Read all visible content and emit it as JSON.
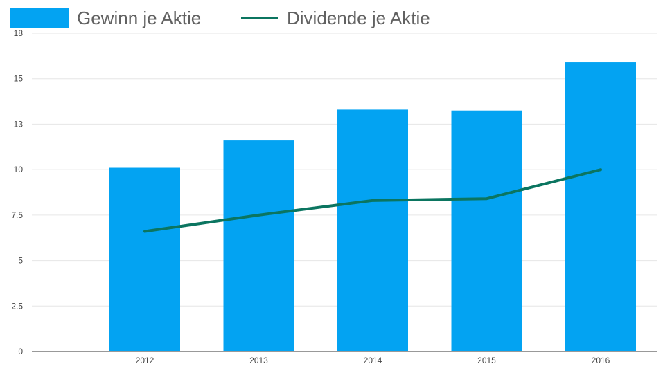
{
  "chart_data": {
    "type": "bar",
    "categories": [
      "2012",
      "2013",
      "2014",
      "2015",
      "2016"
    ],
    "series": [
      {
        "name": "Gewinn je Aktie",
        "type": "bar",
        "color": "#03a3f2",
        "values": [
          10.1,
          11.6,
          13.3,
          13.25,
          15.9
        ]
      },
      {
        "name": "Dividende je Aktie",
        "type": "line",
        "color": "#0b7560",
        "values": [
          6.6,
          7.5,
          8.3,
          8.4,
          10.0
        ]
      }
    ],
    "ylim": [
      0,
      17.5
    ],
    "yticks": [
      0,
      2.5,
      5,
      7.5,
      10,
      12.5,
      15,
      17.5
    ],
    "ytick_labels": [
      "0",
      "2.5",
      "5",
      "7.5",
      "10",
      "13",
      "15",
      "18"
    ],
    "grid": true,
    "legend_position": "top-left",
    "title": "",
    "xlabel": "",
    "ylabel": ""
  }
}
